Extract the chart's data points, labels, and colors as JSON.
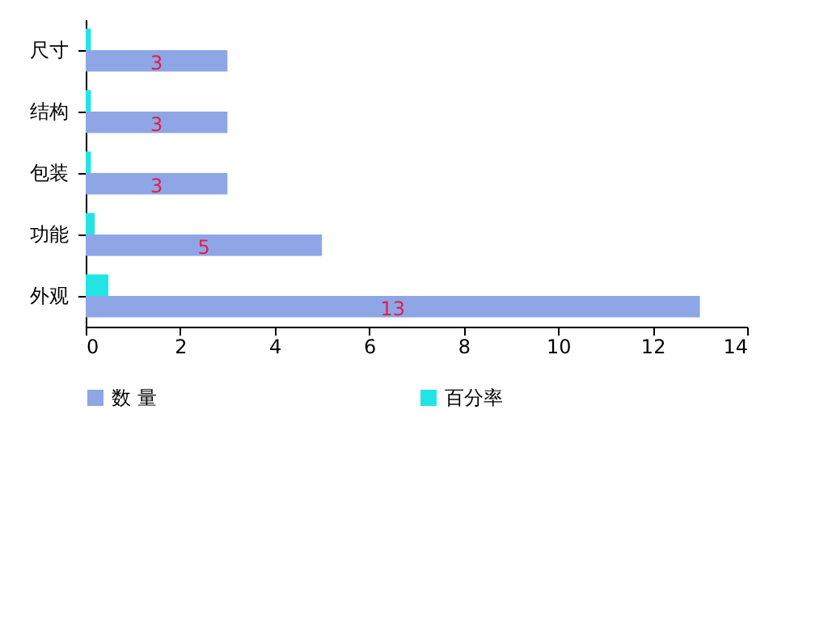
{
  "chart_data": {
    "type": "bar",
    "orientation": "horizontal",
    "categories": [
      "尺寸",
      "结构",
      "包装",
      "功能",
      "外观"
    ],
    "series": [
      {
        "name": "数    量",
        "color": "#8fa6e6",
        "values": [
          3,
          3,
          3,
          5,
          13
        ],
        "value_labels": [
          "3",
          "3",
          "3",
          "5",
          "13"
        ]
      },
      {
        "name": "百分率",
        "color": "#22e4e4",
        "values": [
          0.11,
          0.11,
          0.11,
          0.19,
          0.48
        ]
      }
    ],
    "xlim": [
      0,
      14
    ],
    "xticks": [
      0,
      2,
      4,
      6,
      8,
      10,
      12,
      14
    ],
    "legend": "bottom"
  }
}
